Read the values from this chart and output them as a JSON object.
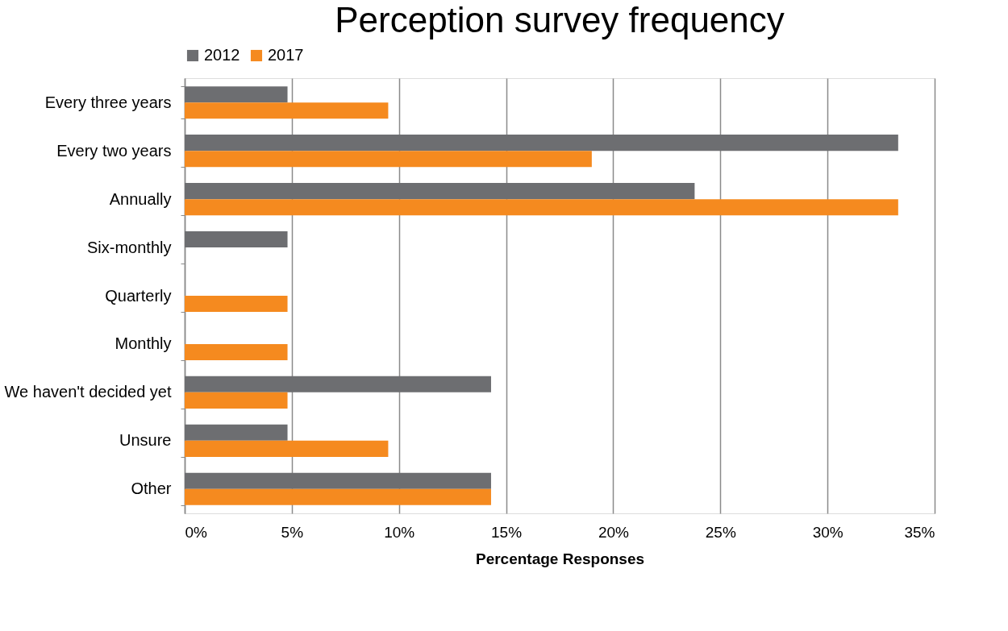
{
  "chart_data": {
    "type": "bar",
    "orientation": "horizontal",
    "title": "Perception survey frequency",
    "xlabel": "Percentage Responses",
    "categories": [
      "Every three years",
      "Every two years",
      "Annually",
      "Six-monthly",
      "Quarterly",
      "Monthly",
      "We haven't decided yet",
      "Unsure",
      "Other"
    ],
    "series": [
      {
        "name": "2012",
        "color": "#6d6e71",
        "values": [
          4.8,
          33.3,
          23.8,
          4.8,
          null,
          null,
          14.3,
          4.8,
          14.3
        ]
      },
      {
        "name": "2017",
        "color": "#f58a1f",
        "values": [
          9.5,
          19.0,
          33.3,
          null,
          4.8,
          4.8,
          4.8,
          9.5,
          14.3
        ]
      }
    ],
    "xlim": [
      0,
      35
    ],
    "xticks": [
      {
        "value": 0,
        "label": "0%"
      },
      {
        "value": 5,
        "label": "5%"
      },
      {
        "value": 10,
        "label": "10%"
      },
      {
        "value": 15,
        "label": "15%"
      },
      {
        "value": 20,
        "label": "20%"
      },
      {
        "value": 25,
        "label": "25%"
      },
      {
        "value": 30,
        "label": "30%"
      },
      {
        "value": 35,
        "label": "35%"
      }
    ],
    "grid": "x",
    "legend": "top"
  }
}
